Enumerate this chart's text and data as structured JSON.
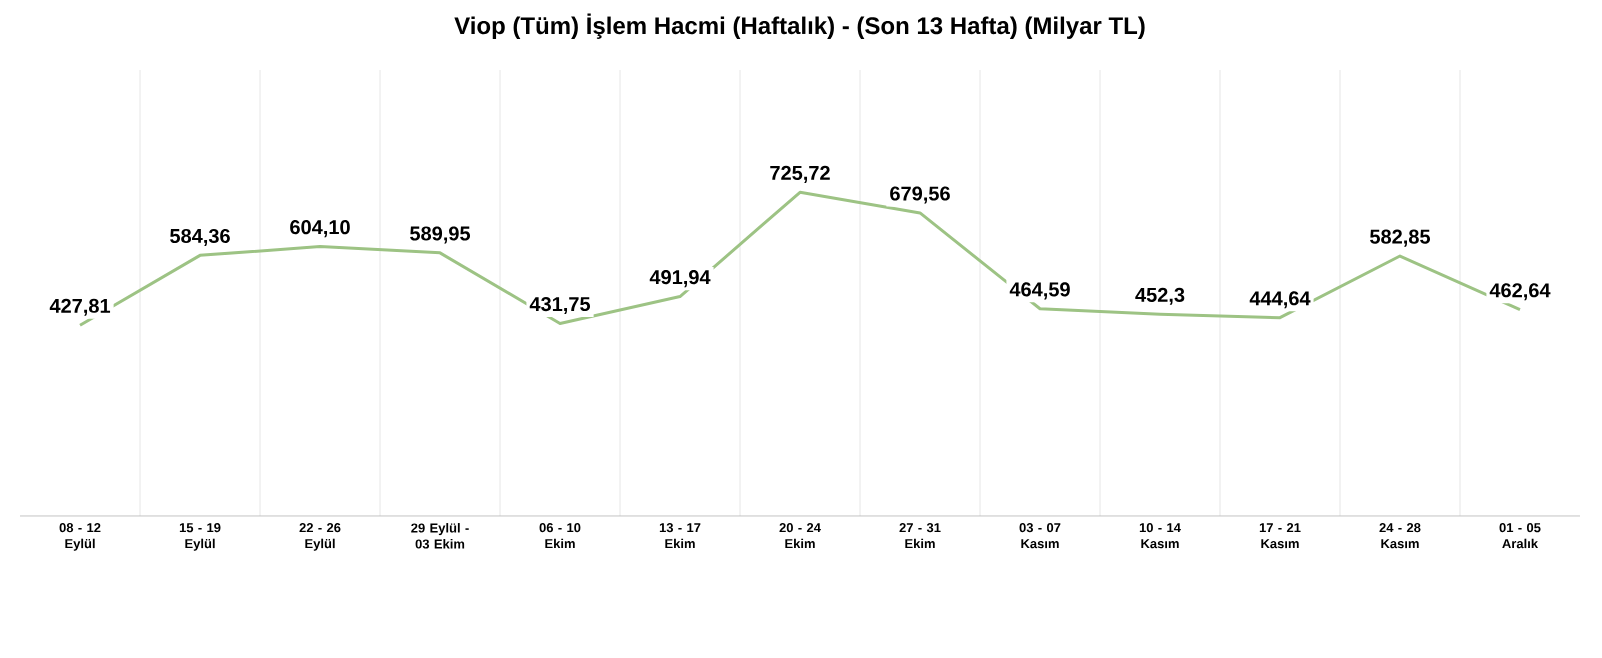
{
  "chart_data": {
    "type": "line",
    "title": "Viop (Tüm) İşlem Hacmi (Haftalık) - (Son 13 Hafta) (Milyar TL)",
    "categories": [
      "08 - 12 Eylül",
      "15 - 19 Eylül",
      "22 - 26 Eylül",
      "29 Eylül - 03 Ekim",
      "06 - 10 Ekim",
      "13 - 17 Ekim",
      "20 - 24 Ekim",
      "27 - 31 Ekim",
      "03 - 07 Kasım",
      "10 - 14 Kasım",
      "17 - 21 Kasım",
      "24 - 28 Kasım",
      "01 - 05 Aralık"
    ],
    "values": [
      427.81,
      584.36,
      604.1,
      589.95,
      431.75,
      491.94,
      725.72,
      679.56,
      464.59,
      452.3,
      444.64,
      582.85,
      462.64
    ],
    "value_labels": [
      "427,81",
      "584,36",
      "604,10",
      "589,95",
      "431,75",
      "491,94",
      "725,72",
      "679,56",
      "464,59",
      "452,3",
      "444,64",
      "582,85",
      "462,64"
    ],
    "color": "#9dc384",
    "ylim": [
      0,
      1000
    ],
    "grid": "x",
    "marker": "none",
    "line_style": "solid"
  }
}
